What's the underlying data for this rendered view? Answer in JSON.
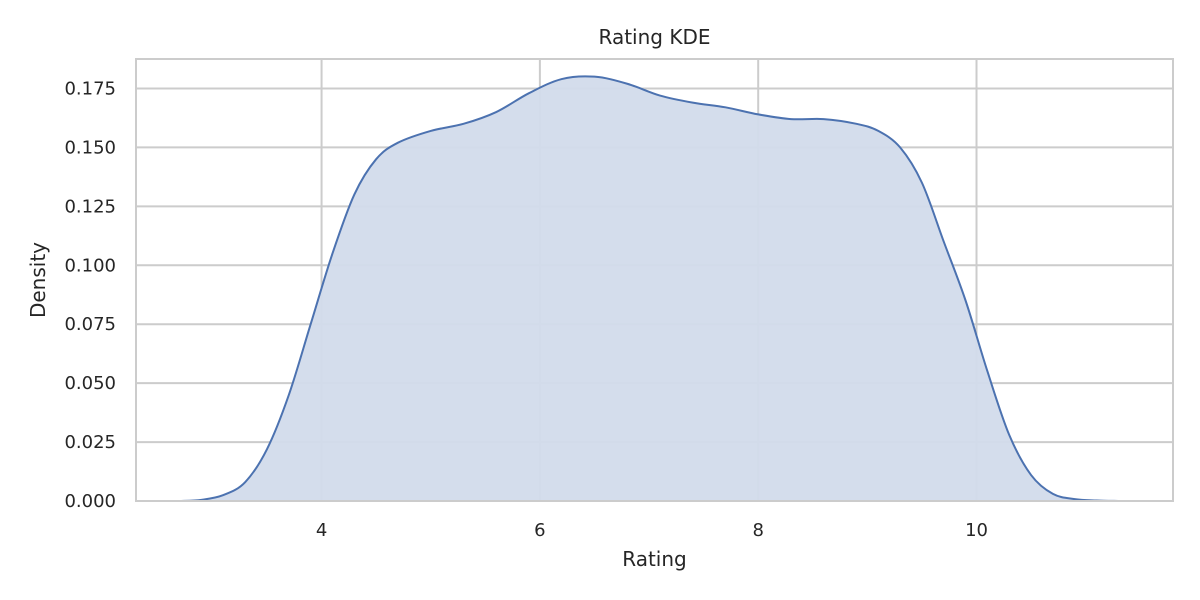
{
  "chart_data": {
    "type": "area",
    "title": "Rating KDE",
    "xlabel": "Rating",
    "ylabel": "Density",
    "xlim": [
      2.3,
      11.8
    ],
    "ylim": [
      0,
      0.1875
    ],
    "xticks": [
      4,
      6,
      8,
      10
    ],
    "xtick_labels": [
      "4",
      "6",
      "8",
      "10"
    ],
    "yticks": [
      0,
      0.025,
      0.05,
      0.075,
      0.1,
      0.125,
      0.15,
      0.175
    ],
    "ytick_labels": [
      "0.000",
      "0.025",
      "0.050",
      "0.075",
      "0.100",
      "0.125",
      "0.150",
      "0.175"
    ],
    "grid": true,
    "series": [
      {
        "line_color": "#4c72b0",
        "fill_color": "#d2dbeb",
        "x": [
          2.7,
          2.9,
          3.1,
          3.3,
          3.5,
          3.7,
          3.9,
          4.1,
          4.3,
          4.5,
          4.7,
          5.0,
          5.3,
          5.6,
          5.9,
          6.2,
          6.5,
          6.8,
          7.1,
          7.4,
          7.7,
          8.0,
          8.3,
          8.6,
          8.9,
          9.1,
          9.3,
          9.5,
          9.7,
          9.9,
          10.1,
          10.3,
          10.5,
          10.7,
          10.9,
          11.1,
          11.3
        ],
        "y": [
          0.0,
          0.0005,
          0.0025,
          0.008,
          0.022,
          0.045,
          0.075,
          0.105,
          0.13,
          0.145,
          0.152,
          0.157,
          0.16,
          0.165,
          0.173,
          0.179,
          0.18,
          0.177,
          0.172,
          0.169,
          0.167,
          0.164,
          0.162,
          0.162,
          0.16,
          0.157,
          0.15,
          0.135,
          0.11,
          0.085,
          0.055,
          0.028,
          0.011,
          0.003,
          0.0008,
          0.0002,
          0.0
        ]
      }
    ]
  }
}
